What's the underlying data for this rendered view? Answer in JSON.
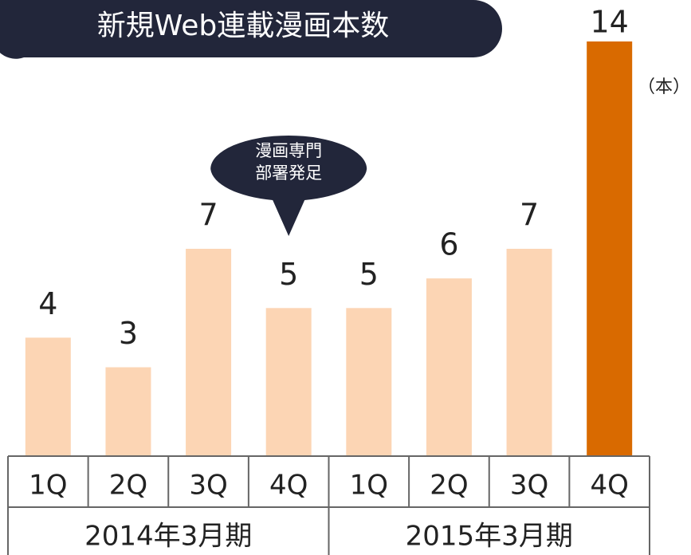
{
  "chart_data": {
    "type": "bar",
    "title": "新規Web連載漫画本数",
    "unit_label": "（本）",
    "categories": [
      "1Q",
      "2Q",
      "3Q",
      "4Q",
      "1Q",
      "2Q",
      "3Q",
      "4Q"
    ],
    "values": [
      4,
      3,
      7,
      5,
      5,
      6,
      7,
      14
    ],
    "colors": [
      "#fcd5b4",
      "#fcd5b4",
      "#fcd5b4",
      "#fcd5b4",
      "#fcd5b4",
      "#fcd5b4",
      "#fcd5b4",
      "#d96a00"
    ],
    "groups": [
      {
        "label": "2014年3月期",
        "span": 4
      },
      {
        "label": "2015年3月期",
        "span": 4
      }
    ],
    "annotation": {
      "lines": [
        "漫画専門",
        "部署発足"
      ],
      "category_index": 3
    },
    "ylim": [
      0,
      14
    ]
  }
}
